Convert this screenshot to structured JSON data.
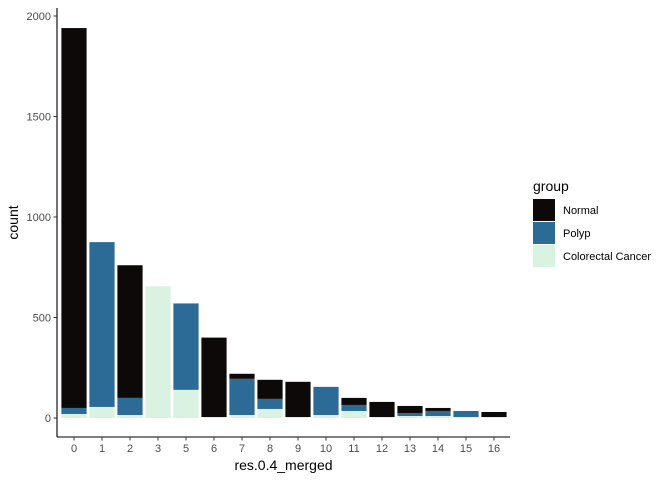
{
  "chart_data": {
    "type": "bar",
    "stacked": true,
    "xlabel": "res.0.4_merged",
    "ylabel": "count",
    "ylim": [
      0,
      2000
    ],
    "yticks": [
      0,
      500,
      1000,
      1500,
      2000
    ],
    "categories": [
      "0",
      "1",
      "2",
      "3",
      "5",
      "6",
      "7",
      "8",
      "9",
      "10",
      "11",
      "12",
      "13",
      "14",
      "15",
      "16"
    ],
    "series": [
      {
        "name": "Colorectal Cancer",
        "color": "#d9f2e1",
        "values": [
          20,
          55,
          15,
          655,
          140,
          5,
          15,
          45,
          5,
          15,
          35,
          5,
          10,
          10,
          5,
          5
        ]
      },
      {
        "name": "Polyp",
        "color": "#2c6b96",
        "values": [
          30,
          820,
          85,
          0,
          430,
          0,
          180,
          50,
          0,
          140,
          30,
          0,
          15,
          25,
          30,
          0
        ]
      },
      {
        "name": "Normal",
        "color": "#0d0909",
        "values": [
          1890,
          0,
          660,
          0,
          0,
          395,
          25,
          95,
          175,
          0,
          35,
          75,
          35,
          15,
          0,
          25
        ]
      }
    ],
    "legend": {
      "title": "group",
      "position": "right",
      "items": [
        "Normal",
        "Polyp",
        "Colorectal Cancer"
      ]
    },
    "grid": false
  }
}
